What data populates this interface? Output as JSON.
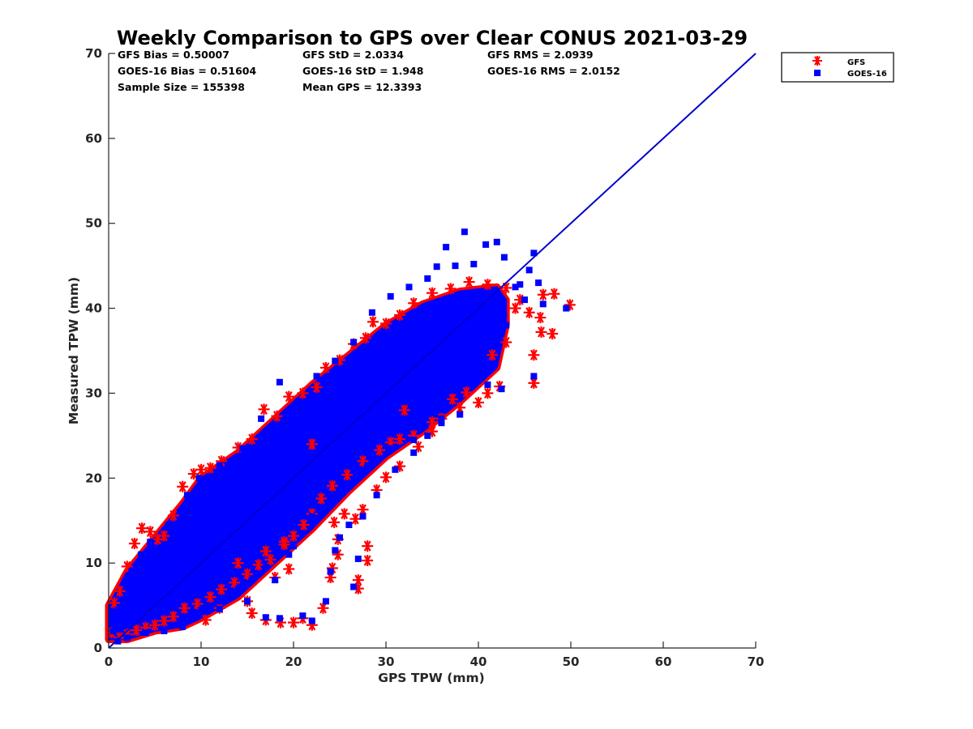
{
  "chart_data": {
    "type": "scatter",
    "title": "Weekly Comparison to GPS over Clear CONUS 2021-03-29",
    "xlabel": "GPS TPW (mm)",
    "ylabel": "Measured TPW (mm)",
    "xlim": [
      0,
      70
    ],
    "ylim": [
      0,
      70
    ],
    "xticks": [
      0,
      10,
      20,
      30,
      40,
      50,
      60,
      70
    ],
    "yticks": [
      0,
      10,
      20,
      30,
      40,
      50,
      60,
      70
    ],
    "grid": false,
    "legend_position": "outside-top-right",
    "stats": [
      [
        "GFS Bias = 0.50007",
        "GFS StD = 2.0334",
        "GFS RMS = 2.0939"
      ],
      [
        "GOES-16 Bias = 0.51604",
        "GOES-16 StD = 1.948",
        "GOES-16 RMS = 2.0152"
      ],
      [
        "Sample Size = 155398",
        "Mean GPS = 12.3393"
      ]
    ],
    "reference_line": {
      "name": "1:1 line",
      "x": [
        0,
        70
      ],
      "y": [
        0,
        70
      ],
      "color": "#0000CC"
    },
    "series": [
      {
        "name": "GFS",
        "marker": "asterisk",
        "color": "#FF0000",
        "points": [
          [
            0.3,
            1.8
          ],
          [
            0.6,
            5.3
          ],
          [
            1.2,
            6.7
          ],
          [
            2.0,
            9.6
          ],
          [
            2.8,
            12.3
          ],
          [
            3.6,
            14.1
          ],
          [
            4.5,
            13.7
          ],
          [
            5.3,
            12.8
          ],
          [
            6.0,
            13.2
          ],
          [
            7.0,
            15.6
          ],
          [
            8.0,
            19.0
          ],
          [
            9.2,
            20.5
          ],
          [
            10.0,
            21.0
          ],
          [
            11.0,
            21.2
          ],
          [
            12.2,
            22.0
          ],
          [
            14.0,
            23.6
          ],
          [
            15.5,
            24.6
          ],
          [
            16.8,
            28.1
          ],
          [
            18.2,
            27.3
          ],
          [
            19.5,
            29.6
          ],
          [
            21.0,
            30.0
          ],
          [
            22.5,
            30.7
          ],
          [
            23.5,
            33.0
          ],
          [
            25.0,
            33.9
          ],
          [
            26.5,
            35.8
          ],
          [
            27.8,
            36.5
          ],
          [
            28.6,
            38.4
          ],
          [
            30.0,
            38.2
          ],
          [
            31.5,
            39.2
          ],
          [
            33.0,
            40.6
          ],
          [
            35.0,
            41.8
          ],
          [
            37.0,
            42.3
          ],
          [
            39.0,
            43.1
          ],
          [
            41.0,
            42.8
          ],
          [
            43.0,
            42.4
          ],
          [
            44.5,
            41.0
          ],
          [
            45.5,
            39.5
          ],
          [
            46.7,
            38.9
          ],
          [
            46.8,
            37.2
          ],
          [
            48.0,
            37.0
          ],
          [
            46.0,
            34.5
          ],
          [
            46.0,
            31.2
          ],
          [
            47.0,
            41.6
          ],
          [
            48.2,
            41.7
          ],
          [
            49.9,
            40.4
          ],
          [
            42.3,
            30.8
          ],
          [
            41.0,
            30.0
          ],
          [
            40.0,
            28.9
          ],
          [
            38.0,
            28.3
          ],
          [
            36.0,
            27.0
          ],
          [
            35.0,
            25.5
          ],
          [
            33.0,
            25.0
          ],
          [
            31.5,
            24.6
          ],
          [
            30.5,
            24.2
          ],
          [
            29.3,
            23.3
          ],
          [
            27.5,
            22.0
          ],
          [
            25.8,
            20.4
          ],
          [
            24.2,
            19.1
          ],
          [
            23.0,
            17.6
          ],
          [
            22.0,
            15.8
          ],
          [
            21.1,
            14.5
          ],
          [
            20.0,
            13.2
          ],
          [
            19.0,
            12.2
          ],
          [
            17.5,
            10.4
          ],
          [
            16.2,
            9.8
          ],
          [
            15.0,
            8.7
          ],
          [
            13.6,
            7.7
          ],
          [
            12.2,
            6.9
          ],
          [
            11.0,
            6.0
          ],
          [
            9.6,
            5.2
          ],
          [
            8.2,
            4.7
          ],
          [
            7.0,
            3.7
          ],
          [
            6.0,
            3.2
          ],
          [
            5.0,
            2.7
          ],
          [
            4.0,
            2.4
          ],
          [
            3.0,
            2.1
          ],
          [
            2.0,
            1.6
          ],
          [
            1.2,
            1.2
          ],
          [
            10.5,
            3.3
          ],
          [
            12.0,
            4.7
          ],
          [
            15.0,
            5.5
          ],
          [
            15.5,
            4.1
          ],
          [
            17.0,
            3.3
          ],
          [
            18.6,
            3.0
          ],
          [
            20.0,
            3.0
          ],
          [
            21.0,
            3.5
          ],
          [
            22.0,
            2.7
          ],
          [
            23.2,
            4.7
          ],
          [
            27.0,
            8.0
          ],
          [
            27.0,
            7.0
          ],
          [
            28.0,
            10.3
          ],
          [
            28.0,
            12.0
          ],
          [
            24.0,
            8.3
          ],
          [
            24.2,
            9.4
          ],
          [
            24.8,
            11.0
          ],
          [
            24.8,
            12.8
          ],
          [
            24.4,
            14.8
          ],
          [
            25.5,
            15.8
          ],
          [
            26.7,
            15.2
          ],
          [
            27.5,
            16.3
          ],
          [
            29.0,
            18.6
          ],
          [
            30.0,
            20.1
          ],
          [
            31.5,
            21.4
          ],
          [
            33.5,
            23.7
          ],
          [
            35.0,
            26.6
          ],
          [
            37.2,
            29.3
          ],
          [
            38.7,
            30.1
          ],
          [
            41.5,
            34.5
          ],
          [
            43.0,
            36.0
          ],
          [
            44.0,
            40.0
          ],
          [
            14.0,
            10.0
          ],
          [
            17.0,
            11.4
          ],
          [
            19.5,
            9.3
          ],
          [
            19.0,
            12.5
          ],
          [
            18.0,
            8.3
          ],
          [
            32.0,
            28.0
          ],
          [
            22.0,
            24.0
          ]
        ]
      },
      {
        "name": "GOES-16",
        "marker": "square",
        "color": "#0000FF",
        "points": [
          [
            0.5,
            2.0
          ],
          [
            1.0,
            4.5
          ],
          [
            2.5,
            9.0
          ],
          [
            3.5,
            11.0
          ],
          [
            4.5,
            12.5
          ],
          [
            6.5,
            14.5
          ],
          [
            8.5,
            18.0
          ],
          [
            9.8,
            20.0
          ],
          [
            12.0,
            21.5
          ],
          [
            14.5,
            23.5
          ],
          [
            16.5,
            27.0
          ],
          [
            18.5,
            31.3
          ],
          [
            20.5,
            29.0
          ],
          [
            22.5,
            32.0
          ],
          [
            24.5,
            33.8
          ],
          [
            26.5,
            36.0
          ],
          [
            28.5,
            39.5
          ],
          [
            30.5,
            41.4
          ],
          [
            32.5,
            42.5
          ],
          [
            34.5,
            43.5
          ],
          [
            35.5,
            44.9
          ],
          [
            36.5,
            47.2
          ],
          [
            37.5,
            45.0
          ],
          [
            38.5,
            49.0
          ],
          [
            39.5,
            45.2
          ],
          [
            40.8,
            47.5
          ],
          [
            42.0,
            47.8
          ],
          [
            42.8,
            46.0
          ],
          [
            44.0,
            42.5
          ],
          [
            45.5,
            44.5
          ],
          [
            46.5,
            43.0
          ],
          [
            46.0,
            32.0
          ],
          [
            44.5,
            42.8
          ],
          [
            45.0,
            41.0
          ],
          [
            47.0,
            40.5
          ],
          [
            49.5,
            40.0
          ],
          [
            42.5,
            30.5
          ],
          [
            41.0,
            31.0
          ],
          [
            38.0,
            27.5
          ],
          [
            36.0,
            27.0
          ],
          [
            34.5,
            25.0
          ],
          [
            33.0,
            24.5
          ],
          [
            30.5,
            23.5
          ],
          [
            28.0,
            21.5
          ],
          [
            26.0,
            19.0
          ],
          [
            24.5,
            18.0
          ],
          [
            22.0,
            15.5
          ],
          [
            21.0,
            13.5
          ],
          [
            19.5,
            11.0
          ],
          [
            17.0,
            9.5
          ],
          [
            15.5,
            8.0
          ],
          [
            14.0,
            7.0
          ],
          [
            12.0,
            5.5
          ],
          [
            10.0,
            4.5
          ],
          [
            8.0,
            2.5
          ],
          [
            6.0,
            2.0
          ],
          [
            4.0,
            1.8
          ],
          [
            2.0,
            1.2
          ],
          [
            1.0,
            0.8
          ],
          [
            12.0,
            4.6
          ],
          [
            15.0,
            5.5
          ],
          [
            17.0,
            3.6
          ],
          [
            18.5,
            3.5
          ],
          [
            21.0,
            3.8
          ],
          [
            22.0,
            3.2
          ],
          [
            23.5,
            5.5
          ],
          [
            26.5,
            7.2
          ],
          [
            27.0,
            10.5
          ],
          [
            24.0,
            9.0
          ],
          [
            24.5,
            11.5
          ],
          [
            25.0,
            13.0
          ],
          [
            26.0,
            14.5
          ],
          [
            27.5,
            15.5
          ],
          [
            29.0,
            18.0
          ],
          [
            31.0,
            21.0
          ],
          [
            33.0,
            23.0
          ],
          [
            36.0,
            26.5
          ],
          [
            40.0,
            34.0
          ],
          [
            43.0,
            38.0
          ],
          [
            46.0,
            46.5
          ],
          [
            13.0,
            10.0
          ],
          [
            18.0,
            8.0
          ],
          [
            20.0,
            12.0
          ],
          [
            25.0,
            24.0
          ],
          [
            30.0,
            28.0
          ],
          [
            35.0,
            33.0
          ]
        ]
      }
    ],
    "legend": [
      "GFS",
      "GOES-16"
    ]
  }
}
